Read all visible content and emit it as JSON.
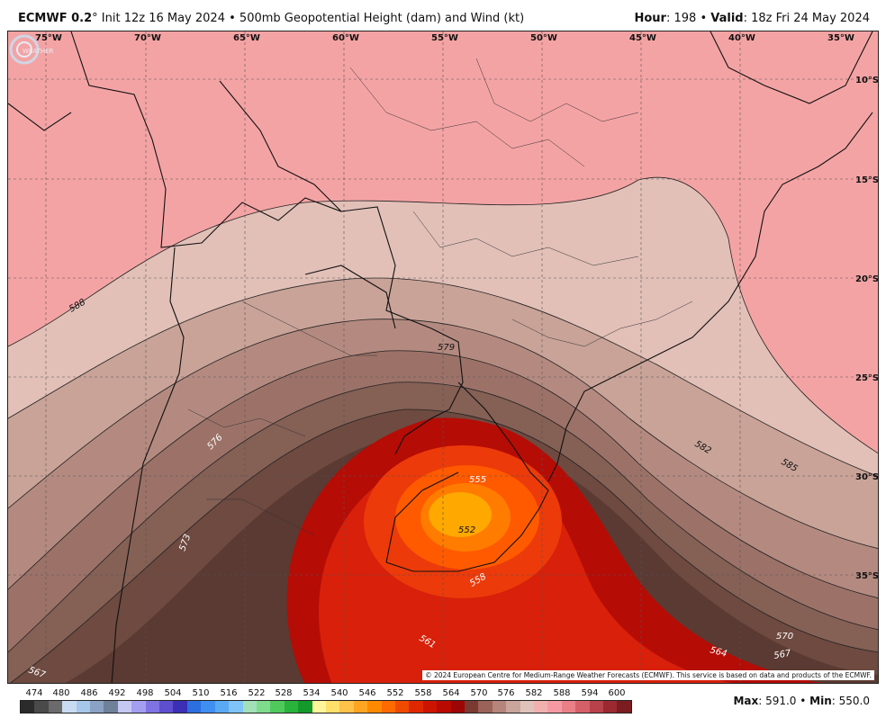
{
  "header": {
    "model": "ECMWF 0.2",
    "degree": "°",
    "init": "Init 12z 16 May 2024",
    "sep": "•",
    "product": "500mb Geopotential Height (dam) and Wind (kt)",
    "hour_label": "Hour",
    "hour_value": ": 198",
    "valid_label": "Valid",
    "valid_value": ": 18z Fri 24 May 2024"
  },
  "map": {
    "lon_labels": [
      "75°W",
      "70°W",
      "65°W",
      "60°W",
      "55°W",
      "50°W",
      "45°W",
      "40°W",
      "35°W"
    ],
    "lat_labels": [
      "10°S",
      "15°S",
      "20°S",
      "25°S",
      "30°S",
      "35°S"
    ],
    "contour_labels": [
      "588",
      "579",
      "576",
      "573",
      "582",
      "585",
      "555",
      "552",
      "558",
      "561",
      "564",
      "567",
      "570",
      "567"
    ],
    "copyright": "© 2024 European Centre for Medium-Range Weather Forecasts (ECMWF). This service is based on data and products of the ECMWF.",
    "logo_text": "WEATHER"
  },
  "legend": {
    "labels": [
      "474",
      "480",
      "486",
      "492",
      "498",
      "504",
      "510",
      "516",
      "522",
      "528",
      "534",
      "540",
      "546",
      "552",
      "558",
      "564",
      "570",
      "576",
      "582",
      "588",
      "594",
      "600"
    ],
    "colors": [
      "#2b2b2b",
      "#4a4a4a",
      "#6b6b6b",
      "#c8dbf0",
      "#a7c7ea",
      "#8aa3c4",
      "#6f8099",
      "#c5c8f2",
      "#a49ef0",
      "#7f73e3",
      "#5d4fd0",
      "#3b2fb5",
      "#2c6fe0",
      "#3f8ff0",
      "#59a9f3",
      "#7fc3f7",
      "#a3e0b7",
      "#7fdc8c",
      "#4fc95c",
      "#29b33c",
      "#139a2a",
      "#fff59a",
      "#ffe06a",
      "#ffc24a",
      "#ffa522",
      "#ff8a00",
      "#ff6a00",
      "#f04a00",
      "#e02800",
      "#cc1400",
      "#b80a00",
      "#9e0606",
      "#7a3a32",
      "#9a6258",
      "#b5847a",
      "#c9a59b",
      "#dfc3ba",
      "#f0b0ae",
      "#f59aa2",
      "#ea7f88",
      "#d66068",
      "#b8424a",
      "#9a2a30",
      "#7a1c20"
    ],
    "max_label": "Max",
    "max_value": ": 591.0",
    "min_label": "Min",
    "min_value": ": 550.0"
  }
}
